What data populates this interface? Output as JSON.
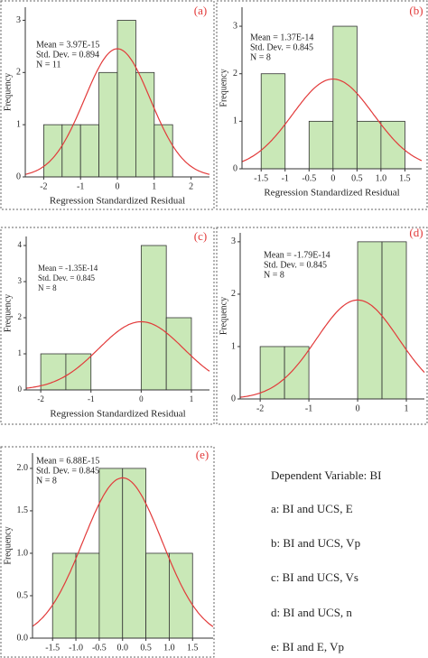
{
  "chart_data": [
    {
      "type": "histogram",
      "panel_label": "(a)",
      "x_label": "Regression Standardized Residual",
      "y_label": "Frequency",
      "bins": [
        -2,
        -1.5,
        -1,
        -0.5,
        0,
        0.5,
        1,
        1.5
      ],
      "counts": [
        1,
        1,
        1,
        2,
        3,
        2,
        1
      ],
      "xlim": [
        -2.5,
        2.5
      ],
      "xticks": [
        -2,
        -1,
        0,
        1,
        2
      ],
      "ylim": [
        0,
        3.25
      ],
      "yticks": [
        0,
        1,
        2,
        3
      ],
      "color": "#c9e8b7",
      "curve_color": "#e23a3a",
      "stats": {
        "mean": {
          "value": 3.97e-15,
          "label": "Mean = 3.97E-15"
        },
        "sd": {
          "value": 0.894,
          "label": "Std. Dev. = 0.894"
        },
        "n": {
          "value": 11,
          "label": "N = 11"
        }
      }
    },
    {
      "type": "histogram",
      "panel_label": "(b)",
      "x_label": "Regression Standardized Residual",
      "y_label": "Frequency",
      "bins": [
        -1.5,
        -1,
        -0.5,
        0,
        0.5,
        1,
        1.5
      ],
      "counts": [
        2,
        0,
        1,
        3,
        1,
        1
      ],
      "xlim": [
        -1.9,
        1.85
      ],
      "xticks": [
        -1.5,
        -1,
        -0.5,
        0,
        0.5,
        {
          "value": 1,
          "label": "1.0"
        },
        1.5
      ],
      "ylim": [
        0,
        3.4
      ],
      "yticks": [
        0,
        1,
        2,
        3
      ],
      "color": "#c9e8b7",
      "curve_color": "#e23a3a",
      "stats": {
        "mean": {
          "value": 1.37e-14,
          "label": "Mean = 1.37E-14"
        },
        "sd": {
          "value": 0.845,
          "label": "Std. Dev. = 0.845"
        },
        "n": {
          "value": 8,
          "label": "N = 8"
        }
      }
    },
    {
      "type": "histogram",
      "panel_label": "(c)",
      "x_label": "Regression Standardized Residual",
      "y_label": "Frequency",
      "bins": [
        -2,
        -1.5,
        -1,
        -0.5,
        0,
        0.5,
        1
      ],
      "counts": [
        1,
        1,
        0,
        0,
        4,
        2
      ],
      "xlim": [
        -2.29,
        1.36
      ],
      "xticks": [
        -2,
        -1,
        0,
        1
      ],
      "ylim": [
        0,
        4.25
      ],
      "yticks": [
        0,
        1,
        2,
        3,
        4
      ],
      "color": "#c9e8b7",
      "curve_color": "#e23a3a",
      "stats": {
        "mean": {
          "value": -1.35e-14,
          "label": "Mean = -1.35E-14"
        },
        "sd": {
          "value": 0.845,
          "label": "Std. Dev. = 0.845"
        },
        "n": {
          "value": 8,
          "label": "N = 8"
        }
      }
    },
    {
      "type": "histogram",
      "panel_label": "(d)",
      "y_label": "Frequency",
      "bins": [
        -2,
        -1.5,
        -1,
        -0.5,
        0,
        0.5,
        1
      ],
      "counts": [
        1,
        1,
        0,
        0,
        3,
        3
      ],
      "xlim": [
        -2.41,
        1.37
      ],
      "xticks": [
        -2,
        -1,
        0,
        1
      ],
      "ylim": [
        0,
        3.17
      ],
      "yticks": [
        0,
        1,
        2,
        3
      ],
      "color": "#c9e8b7",
      "curve_color": "#e23a3a",
      "stats": {
        "mean": {
          "value": -1.79e-14,
          "label": "Mean = -1.79E-14"
        },
        "sd": {
          "value": 0.845,
          "label": "Std. Dev. = 0.845"
        },
        "n": {
          "value": 8,
          "label": "N = 8"
        }
      }
    },
    {
      "type": "histogram",
      "panel_label": "(e)",
      "x_label": "Regression Standardized Residual",
      "y_label": "Frequency",
      "bins": [
        -1.5,
        -1,
        -0.5,
        0,
        0.5,
        1,
        1.5
      ],
      "counts": [
        1,
        1,
        2,
        2,
        1,
        1
      ],
      "xlim": [
        -1.93,
        1.94
      ],
      "xticks": [
        -1.5,
        {
          "value": -1,
          "label": "-1.0"
        },
        -0.5,
        {
          "value": 0,
          "label": "0.0"
        },
        0.5,
        {
          "value": 1,
          "label": "1.0"
        },
        1.5
      ],
      "ylim": [
        0,
        2.18
      ],
      "yticks": [
        {
          "value": 0,
          "label": "0.0"
        },
        0.5,
        {
          "value": 1,
          "label": "1.0"
        },
        1.5,
        {
          "value": 2,
          "label": "2.0"
        }
      ],
      "color": "#c9e8b7",
      "curve_color": "#e23a3a",
      "stats": {
        "mean": {
          "value": 6.88e-15,
          "label": "Mean = 6.88E-15"
        },
        "sd": {
          "value": 0.845,
          "label": "Std. Dev. = 0.845"
        },
        "n": {
          "value": 8,
          "label": "N = 8"
        }
      }
    }
  ],
  "notes": [
    "Dependent Variable: BI",
    "a: BI and UCS, E",
    "b: BI and UCS, Vp",
    "c: BI and UCS, Vs",
    "d: BI and UCS, n",
    "e: BI and E, Vp"
  ]
}
